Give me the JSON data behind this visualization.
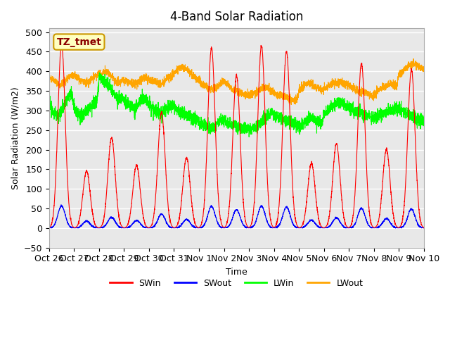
{
  "title": "4-Band Solar Radiation",
  "xlabel": "Time",
  "ylabel": "Solar Radiation (W/m2)",
  "ylim": [
    -50,
    510
  ],
  "xlim": [
    0,
    336
  ],
  "background_color": "#ffffff",
  "plot_bg_color": "#e8e8e8",
  "grid_color": "#ffffff",
  "colors": {
    "SWin": "#ff0000",
    "SWout": "#0000ff",
    "LWin": "#00ff00",
    "LWout": "#ffa500"
  },
  "label_box_text": "TZ_tmet",
  "label_box_facecolor": "#ffffc0",
  "label_box_edgecolor": "#cc9900",
  "tick_labels": [
    "Oct 26",
    "Oct 27",
    "Oct 28",
    "Oct 29",
    "Oct 30",
    "Oct 31",
    "Nov 1",
    "Nov 2",
    "Nov 3",
    "Nov 4",
    "Nov 5",
    "Nov 6",
    "Nov 7",
    "Nov 8",
    "Nov 9",
    "Nov 10"
  ],
  "tick_positions": [
    0,
    24,
    48,
    72,
    96,
    120,
    144,
    168,
    192,
    216,
    240,
    264,
    288,
    312,
    336,
    360
  ],
  "day_peaks_SWin": [
    470,
    145,
    230,
    160,
    295,
    180,
    460,
    390,
    465,
    450,
    165,
    215,
    420,
    200,
    405,
    0
  ],
  "noise_level": 6,
  "lwin_pattern": [
    335,
    300,
    295,
    290,
    285,
    295,
    300,
    310,
    320,
    330,
    340,
    345,
    310,
    295,
    290,
    285,
    290,
    295,
    300,
    305,
    310,
    315,
    320,
    325,
    385,
    380,
    375,
    370,
    365,
    360,
    355,
    345,
    335,
    325,
    330,
    335,
    325,
    320,
    315,
    310,
    305,
    300,
    310,
    320,
    330,
    335,
    330,
    325,
    315,
    310,
    305,
    300,
    295,
    292,
    290,
    295,
    300,
    305,
    310,
    315,
    310,
    305,
    300,
    295,
    292,
    290,
    288,
    285,
    283,
    280,
    278,
    276,
    270,
    265,
    262,
    260,
    258,
    256,
    255,
    258,
    262,
    268,
    274,
    280,
    275,
    270,
    267,
    265,
    263,
    262,
    260,
    258,
    256,
    255,
    254,
    252,
    250,
    252,
    255,
    258,
    262,
    267,
    272,
    278,
    283,
    288,
    292,
    295,
    290,
    285,
    282,
    280,
    278,
    276,
    274,
    272,
    270,
    268,
    266,
    264,
    262,
    260,
    265,
    270,
    275,
    280,
    285,
    280,
    275,
    272,
    270,
    268,
    290,
    295,
    300,
    305,
    310,
    315,
    318,
    320,
    322,
    318,
    315,
    312,
    308,
    305,
    302,
    300,
    298,
    295,
    292,
    290,
    288,
    286,
    284,
    282,
    280,
    282,
    285,
    288,
    290,
    292,
    295,
    298,
    300,
    302,
    305,
    308,
    305,
    302,
    298,
    295,
    292,
    290,
    288,
    285,
    282,
    280,
    278,
    276
  ],
  "lwout_pattern": [
    385,
    380,
    378,
    375,
    370,
    365,
    368,
    372,
    378,
    382,
    387,
    390,
    390,
    387,
    383,
    378,
    375,
    373,
    372,
    375,
    378,
    382,
    387,
    390,
    392,
    395,
    397,
    398,
    397,
    395,
    390,
    383,
    375,
    370,
    372,
    375,
    378,
    375,
    372,
    370,
    368,
    365,
    368,
    372,
    378,
    382,
    383,
    382,
    380,
    378,
    376,
    374,
    372,
    370,
    368,
    372,
    378,
    382,
    387,
    390,
    395,
    400,
    405,
    408,
    410,
    408,
    405,
    400,
    395,
    390,
    385,
    380,
    375,
    370,
    365,
    362,
    360,
    358,
    356,
    355,
    358,
    362,
    367,
    372,
    375,
    370,
    365,
    360,
    355,
    352,
    350,
    348,
    345,
    343,
    342,
    340,
    338,
    340,
    342,
    345,
    348,
    352,
    356,
    360,
    362,
    358,
    354,
    350,
    345,
    342,
    340,
    338,
    335,
    333,
    332,
    330,
    328,
    326,
    325,
    324,
    350,
    355,
    360,
    365,
    368,
    370,
    368,
    365,
    362,
    358,
    355,
    352,
    355,
    358,
    362,
    365,
    368,
    370,
    372,
    373,
    372,
    370,
    368,
    365,
    362,
    360,
    358,
    355,
    352,
    350,
    348,
    346,
    344,
    342,
    340,
    338,
    340,
    345,
    350,
    355,
    358,
    360,
    362,
    365,
    367,
    368,
    366,
    364,
    390,
    395,
    400,
    405,
    410,
    415,
    418,
    420,
    418,
    415,
    410,
    405
  ]
}
